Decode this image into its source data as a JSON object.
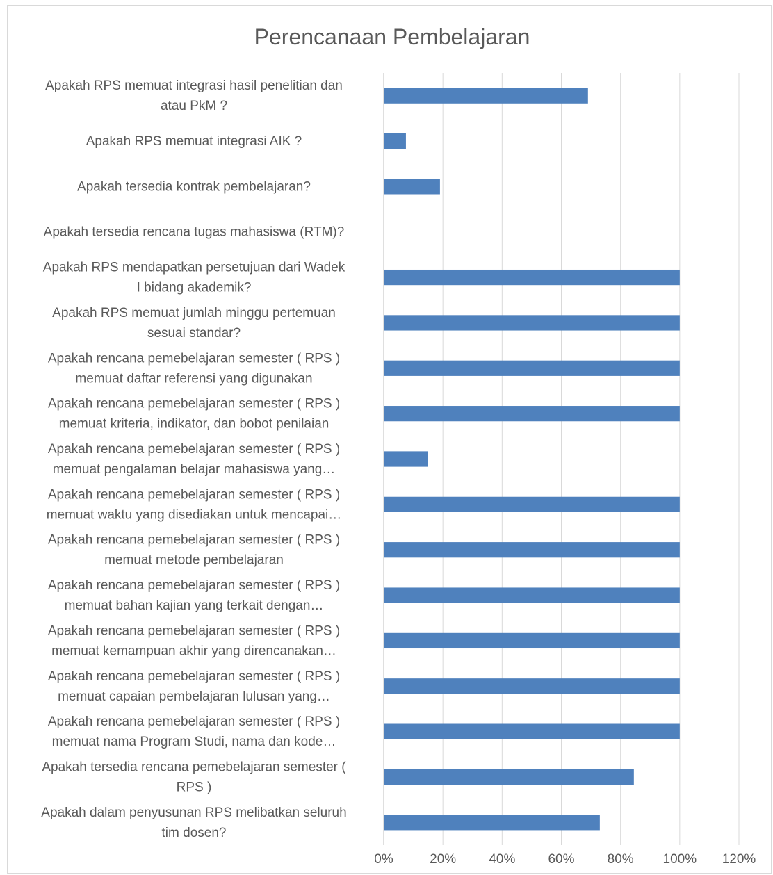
{
  "chart_data": {
    "type": "bar",
    "orientation": "horizontal",
    "title": "Perencanaan Pembelajaran",
    "xlabel": "",
    "ylabel": "",
    "xlim": [
      0,
      1.2
    ],
    "x_ticks": [
      "0%",
      "20%",
      "40%",
      "60%",
      "80%",
      "100%",
      "120%"
    ],
    "grid": "vertical",
    "legend": "none",
    "bar_color": "#4f81bd",
    "categories": [
      [
        "Apakah RPS memuat integrasi hasil penelitian dan",
        "atau PkM ?"
      ],
      [
        "Apakah RPS memuat integrasi AIK ?"
      ],
      [
        "Apakah tersedia kontrak pembelajaran?"
      ],
      [
        "Apakah tersedia rencana tugas mahasiswa (RTM)?"
      ],
      [
        "Apakah RPS mendapatkan persetujuan dari Wadek",
        "I bidang akademik?"
      ],
      [
        "Apakah RPS memuat jumlah minggu pertemuan",
        "sesuai standar?"
      ],
      [
        "Apakah rencana pemebelajaran semester ( RPS )",
        "memuat daftar referensi yang digunakan"
      ],
      [
        "Apakah rencana pemebelajaran semester ( RPS )",
        "memuat kriteria, indikator, dan bobot penilaian"
      ],
      [
        "Apakah rencana pemebelajaran semester ( RPS )",
        "memuat pengalaman belajar mahasiswa yang…"
      ],
      [
        "Apakah rencana pemebelajaran semester ( RPS )",
        "memuat waktu yang disediakan untuk mencapai…"
      ],
      [
        "Apakah rencana pemebelajaran semester ( RPS )",
        "memuat metode pembelajaran"
      ],
      [
        "Apakah rencana pemebelajaran semester ( RPS )",
        "memuat bahan kajian yang terkait dengan…"
      ],
      [
        "Apakah rencana pemebelajaran semester ( RPS )",
        "memuat kemampuan akhir yang direncanakan…"
      ],
      [
        "Apakah rencana pemebelajaran semester ( RPS )",
        "memuat capaian pembelajaran lulusan yang…"
      ],
      [
        "Apakah rencana pemebelajaran semester ( RPS )",
        "memuat nama Program Studi, nama dan kode…"
      ],
      [
        "Apakah tersedia rencana pemebelajaran semester (",
        "RPS )"
      ],
      [
        "Apakah dalam penyusunan RPS melibatkan seluruh",
        "tim dosen?"
      ]
    ],
    "values": [
      0.69,
      0.075,
      0.19,
      0,
      1.0,
      1.0,
      1.0,
      1.0,
      0.15,
      1.0,
      1.0,
      1.0,
      1.0,
      1.0,
      1.0,
      0.845,
      0.73
    ]
  }
}
